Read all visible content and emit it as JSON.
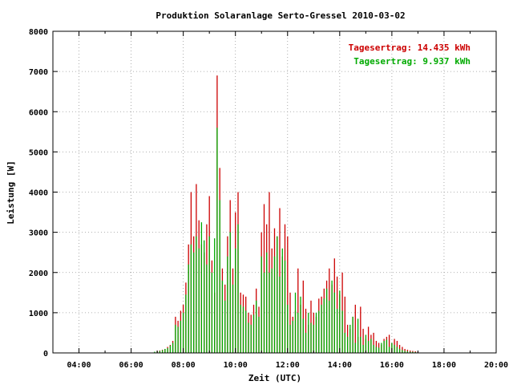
{
  "chart_data": {
    "type": "bar",
    "title": "Produktion Solaranlage Serto-Gressel 2010-03-02",
    "xlabel": "Zeit (UTC)",
    "ylabel": "Leistung [W]",
    "xlim": [
      3.0,
      20.0
    ],
    "ylim": [
      0,
      8000
    ],
    "xticks": [
      "04:00",
      "06:00",
      "08:00",
      "10:00",
      "12:00",
      "14:00",
      "16:00",
      "18:00",
      "20:00"
    ],
    "yticks": [
      "0",
      "1000",
      "2000",
      "3000",
      "4000",
      "5000",
      "6000",
      "7000",
      "8000"
    ],
    "grid": true,
    "legend_position": "top-right",
    "series": [
      {
        "name": "Tagesertrag: 14.435 kWh",
        "color": "#cc0000",
        "x": [
          7.0,
          7.1,
          7.2,
          7.3,
          7.4,
          7.5,
          7.6,
          7.7,
          7.8,
          7.9,
          8.0,
          8.1,
          8.2,
          8.3,
          8.4,
          8.5,
          8.6,
          8.7,
          8.8,
          8.9,
          9.0,
          9.1,
          9.2,
          9.3,
          9.4,
          9.5,
          9.6,
          9.7,
          9.8,
          9.9,
          10.0,
          10.1,
          10.2,
          10.3,
          10.4,
          10.5,
          10.6,
          10.7,
          10.8,
          10.9,
          11.0,
          11.1,
          11.2,
          11.3,
          11.4,
          11.5,
          11.6,
          11.7,
          11.8,
          11.9,
          12.0,
          12.1,
          12.2,
          12.3,
          12.4,
          12.5,
          12.6,
          12.7,
          12.8,
          12.9,
          13.0,
          13.1,
          13.2,
          13.3,
          13.4,
          13.5,
          13.6,
          13.7,
          13.8,
          13.9,
          14.0,
          14.1,
          14.2,
          14.3,
          14.4,
          14.5,
          14.6,
          14.7,
          14.8,
          14.9,
          15.0,
          15.1,
          15.2,
          15.3,
          15.4,
          15.5,
          15.6,
          15.7,
          15.8,
          15.9,
          16.0,
          16.1,
          16.2,
          16.3,
          16.4,
          16.5,
          16.6,
          16.7,
          16.8,
          16.9,
          17.0
        ],
        "values": [
          50,
          60,
          80,
          100,
          150,
          200,
          300,
          900,
          800,
          1050,
          1200,
          1750,
          2700,
          4000,
          2900,
          4200,
          3300,
          2700,
          2500,
          3200,
          3900,
          2300,
          1500,
          6900,
          4600,
          2100,
          1700,
          2900,
          3800,
          2100,
          3500,
          4000,
          1500,
          1450,
          1400,
          1000,
          950,
          1200,
          1600,
          1150,
          3000,
          3700,
          3200,
          4000,
          2600,
          3100,
          2900,
          3600,
          2400,
          3200,
          2900,
          1500,
          900,
          1050,
          2100,
          1200,
          1800,
          1100,
          700,
          1300,
          1000,
          900,
          1350,
          1400,
          1600,
          1800,
          2100,
          1700,
          2350,
          1900,
          1450,
          2000,
          1400,
          700,
          600,
          900,
          1200,
          400,
          1150,
          600,
          350,
          650,
          450,
          500,
          300,
          250,
          200,
          350,
          400,
          450,
          250,
          350,
          300,
          200,
          150,
          100,
          80,
          60,
          50,
          40,
          30
        ]
      },
      {
        "name": "Tagesertrag: 9.937 kWh",
        "color": "#00aa00",
        "x": [
          6.9,
          7.0,
          7.1,
          7.2,
          7.3,
          7.4,
          7.5,
          7.6,
          7.7,
          7.8,
          7.9,
          8.0,
          8.1,
          8.2,
          8.3,
          8.4,
          8.5,
          8.6,
          8.7,
          8.8,
          8.9,
          9.0,
          9.1,
          9.2,
          9.3,
          9.4,
          9.5,
          9.6,
          9.7,
          9.8,
          9.9,
          10.0,
          10.1,
          10.2,
          10.3,
          10.4,
          10.5,
          10.6,
          10.7,
          10.8,
          10.9,
          11.0,
          11.1,
          11.2,
          11.3,
          11.4,
          11.5,
          11.6,
          11.7,
          11.8,
          11.9,
          12.0,
          12.1,
          12.2,
          12.3,
          12.4,
          12.5,
          12.6,
          12.7,
          12.8,
          12.9,
          13.0,
          13.1,
          13.2,
          13.3,
          13.4,
          13.5,
          13.6,
          13.7,
          13.8,
          13.9,
          14.0,
          14.1,
          14.2,
          14.3,
          14.4,
          14.5,
          14.6,
          14.7,
          14.8,
          14.9,
          15.0,
          15.1,
          15.2,
          15.3,
          15.4,
          15.5,
          15.6,
          15.7,
          15.8,
          15.9,
          16.0,
          16.1,
          16.2,
          16.3,
          16.4,
          16.5,
          16.6,
          16.7,
          16.8,
          16.9
        ],
        "values": [
          30,
          40,
          50,
          70,
          100,
          120,
          180,
          250,
          700,
          650,
          800,
          1000,
          1450,
          2200,
          2700,
          2500,
          2900,
          2600,
          3250,
          2800,
          2200,
          2900,
          2000,
          2850,
          5600,
          3800,
          1800,
          1300,
          2400,
          3000,
          1700,
          2600,
          3200,
          1200,
          1150,
          1050,
          750,
          700,
          950,
          1300,
          900,
          2400,
          2000,
          2500,
          2000,
          2100,
          2400,
          2900,
          1900,
          2600,
          2300,
          1200,
          700,
          800,
          1500,
          1000,
          1400,
          850,
          500,
          1000,
          750,
          700,
          1000,
          1050,
          1200,
          1350,
          1600,
          1300,
          1800,
          1500,
          1100,
          1550,
          1050,
          500,
          400,
          700,
          900,
          250,
          850,
          400,
          200,
          450,
          300,
          350,
          200,
          150,
          130,
          250,
          300,
          330,
          150,
          250,
          200,
          150,
          100,
          70,
          50,
          40,
          30,
          25,
          20
        ]
      }
    ]
  }
}
